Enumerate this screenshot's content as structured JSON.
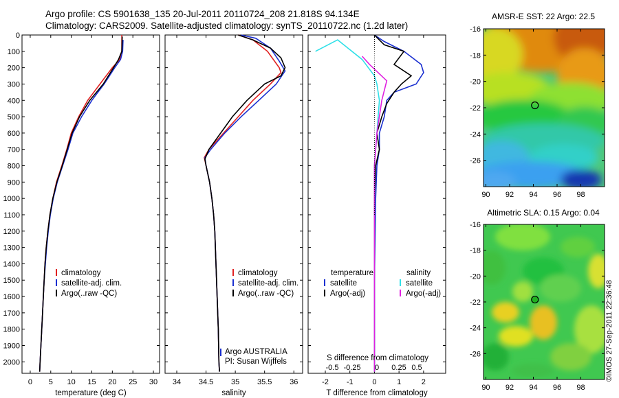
{
  "header": {
    "line1": "Argo profile: CS 5901638_135 20-Jul-2011 20110724_208 21.818S 94.134E",
    "line2": "Climatology: CARS2009. Satellite-adjusted climatology: synTS_20110722.nc (1.2d later)"
  },
  "credit": "©IMOS 27-Sep-2011 22:36:48",
  "colors": {
    "climatology": "#e02020",
    "satellite": "#1a2fd0",
    "argo": "#000000",
    "sal_satellite": "#30e0e8",
    "sal_argo": "#e020e0"
  },
  "depth_ticks": [
    0,
    100,
    200,
    300,
    400,
    500,
    600,
    700,
    800,
    900,
    1000,
    1100,
    1200,
    1300,
    1400,
    1500,
    1600,
    1700,
    1800,
    1900,
    2000
  ],
  "chart_data": [
    {
      "type": "line",
      "xlabel": "temperature (deg C)",
      "xticks": [
        0,
        5,
        10,
        15,
        20,
        25,
        30
      ],
      "xlim": [
        -2,
        31.5
      ],
      "ylim": [
        0,
        2070
      ],
      "legend": [
        "climatology",
        "satellite-adj. clim.",
        "Argo(..raw -QC)"
      ],
      "series": [
        {
          "name": "climatology",
          "points": [
            [
              22.3,
              0
            ],
            [
              22.3,
              100
            ],
            [
              21.8,
              150
            ],
            [
              20,
              200
            ],
            [
              17,
              300
            ],
            [
              14,
              400
            ],
            [
              11.8,
              500
            ],
            [
              10,
              600
            ],
            [
              8.9,
              700
            ],
            [
              7.7,
              800
            ],
            [
              6.4,
              900
            ],
            [
              5.5,
              1000
            ],
            [
              4.8,
              1100
            ],
            [
              4.3,
              1200
            ],
            [
              3.9,
              1300
            ],
            [
              3.6,
              1400
            ],
            [
              3.4,
              1500
            ],
            [
              3.2,
              1600
            ],
            [
              3,
              1700
            ],
            [
              2.8,
              1800
            ],
            [
              2.6,
              1900
            ],
            [
              2.4,
              2000
            ],
            [
              2.3,
              2060
            ]
          ]
        },
        {
          "name": "satellite-adj. clim.",
          "points": [
            [
              22.6,
              30
            ],
            [
              22.5,
              100
            ],
            [
              22,
              150
            ],
            [
              20.6,
              200
            ],
            [
              18,
              300
            ],
            [
              15,
              400
            ],
            [
              12.5,
              500
            ],
            [
              10.4,
              600
            ],
            [
              9.2,
              700
            ],
            [
              7.9,
              800
            ],
            [
              6.6,
              900
            ],
            [
              5.6,
              1000
            ],
            [
              4.9,
              1100
            ],
            [
              4.4,
              1200
            ],
            [
              4,
              1300
            ],
            [
              3.7,
              1400
            ],
            [
              3.4,
              1500
            ],
            [
              3.2,
              1600
            ],
            [
              3,
              1700
            ],
            [
              2.8,
              1800
            ],
            [
              2.6,
              1900
            ],
            [
              2.4,
              2000
            ],
            [
              2.3,
              2060
            ]
          ]
        },
        {
          "name": "Argo(..raw -QC)",
          "points": [
            [
              22.4,
              10
            ],
            [
              22.3,
              100
            ],
            [
              21.5,
              150
            ],
            [
              20.3,
              200
            ],
            [
              17.8,
              300
            ],
            [
              14.5,
              400
            ],
            [
              12,
              500
            ],
            [
              10.2,
              600
            ],
            [
              9,
              700
            ],
            [
              7.8,
              800
            ],
            [
              6.5,
              900
            ],
            [
              5.5,
              1000
            ],
            [
              4.8,
              1100
            ],
            [
              4.3,
              1200
            ],
            [
              3.9,
              1300
            ],
            [
              3.6,
              1400
            ],
            [
              3.4,
              1500
            ],
            [
              3.2,
              1600
            ],
            [
              3,
              1700
            ],
            [
              2.8,
              1800
            ],
            [
              2.6,
              1900
            ],
            [
              2.4,
              2000
            ],
            [
              2.3,
              2060
            ]
          ]
        }
      ]
    },
    {
      "type": "line",
      "xlabel": "salinity",
      "xticks": [
        34,
        34.5,
        35,
        35.5,
        36
      ],
      "xlim": [
        33.8,
        36.15
      ],
      "ylim": [
        0,
        2070
      ],
      "legend": [
        "climatology",
        "satellite-adj. clim.",
        "Argo(..raw -QC)"
      ],
      "annotation": [
        "Argo AUSTRALIA",
        "PI: Susan Wijffels"
      ],
      "series": [
        {
          "name": "climatology",
          "points": [
            [
              35.05,
              0
            ],
            [
              35.3,
              30
            ],
            [
              35.55,
              100
            ],
            [
              35.75,
              200
            ],
            [
              35.78,
              230
            ],
            [
              35.6,
              300
            ],
            [
              35.3,
              400
            ],
            [
              35.05,
              500
            ],
            [
              34.8,
              600
            ],
            [
              34.55,
              700
            ],
            [
              34.47,
              750
            ],
            [
              34.5,
              800
            ],
            [
              34.56,
              900
            ],
            [
              34.6,
              1000
            ],
            [
              34.63,
              1100
            ],
            [
              34.65,
              1200
            ],
            [
              34.67,
              1400
            ],
            [
              34.69,
              1600
            ],
            [
              34.71,
              1800
            ],
            [
              34.72,
              2000
            ],
            [
              34.73,
              2060
            ]
          ]
        },
        {
          "name": "satellite-adj. clim.",
          "points": [
            [
              35.1,
              0
            ],
            [
              35.35,
              20
            ],
            [
              35.6,
              80
            ],
            [
              35.75,
              160
            ],
            [
              35.85,
              220
            ],
            [
              35.7,
              300
            ],
            [
              35.4,
              400
            ],
            [
              35.1,
              500
            ],
            [
              34.82,
              600
            ],
            [
              34.58,
              700
            ],
            [
              34.48,
              750
            ],
            [
              34.5,
              800
            ],
            [
              34.56,
              900
            ],
            [
              34.6,
              1000
            ],
            [
              34.63,
              1100
            ],
            [
              34.65,
              1200
            ],
            [
              34.67,
              1400
            ],
            [
              34.69,
              1600
            ],
            [
              34.71,
              1800
            ],
            [
              34.72,
              2000
            ],
            [
              34.73,
              2060
            ]
          ]
        },
        {
          "name": "Argo(..raw -QC)",
          "points": [
            [
              35.05,
              0
            ],
            [
              35.3,
              30
            ],
            [
              35.6,
              80
            ],
            [
              35.78,
              140
            ],
            [
              35.85,
              200
            ],
            [
              35.78,
              250
            ],
            [
              35.5,
              300
            ],
            [
              35.2,
              400
            ],
            [
              34.95,
              500
            ],
            [
              34.75,
              600
            ],
            [
              34.55,
              700
            ],
            [
              34.48,
              760
            ],
            [
              34.5,
              800
            ],
            [
              34.56,
              900
            ],
            [
              34.6,
              1000
            ],
            [
              34.63,
              1100
            ],
            [
              34.65,
              1200
            ],
            [
              34.67,
              1400
            ],
            [
              34.69,
              1600
            ],
            [
              34.71,
              1800
            ],
            [
              34.72,
              2000
            ],
            [
              34.73,
              2060
            ]
          ]
        }
      ]
    },
    {
      "type": "line",
      "xlabel": "T difference from climatology",
      "xlabel_top": "S difference from climatology",
      "xticks": [
        -2,
        -1,
        0,
        1,
        2
      ],
      "xticks_top": [
        "-0.5",
        "-0.25",
        "0",
        "0.25",
        "0.5"
      ],
      "xlim": [
        -2.7,
        2.9
      ],
      "ylim": [
        0,
        2070
      ],
      "legend": [
        [
          "temperature",
          "satellite",
          "Argo(-adj)"
        ],
        [
          "salinity",
          "satellite",
          "Argo(-adj)"
        ]
      ],
      "series": [
        {
          "name": "satellite",
          "group": "temperature",
          "points": [
            [
              0,
              0
            ],
            [
              0.4,
              40
            ],
            [
              1.2,
              100
            ],
            [
              1.9,
              180
            ],
            [
              2,
              230
            ],
            [
              1.7,
              300
            ],
            [
              0.8,
              350
            ],
            [
              0.5,
              400
            ],
            [
              0.4,
              500
            ],
            [
              0.2,
              600
            ],
            [
              0.2,
              700
            ],
            [
              0.1,
              800
            ],
            [
              0.05,
              1000
            ],
            [
              0,
              1500
            ],
            [
              0,
              2060
            ]
          ]
        },
        {
          "name": "Argo(-adj)",
          "group": "temperature",
          "points": [
            [
              0,
              0
            ],
            [
              0.4,
              60
            ],
            [
              1.2,
              100
            ],
            [
              0.8,
              180
            ],
            [
              1.5,
              250
            ],
            [
              1.1,
              300
            ],
            [
              0.8,
              350
            ],
            [
              0.5,
              420
            ],
            [
              0.3,
              500
            ],
            [
              0.1,
              600
            ],
            [
              0.2,
              700
            ],
            [
              0.05,
              800
            ],
            [
              0,
              1000
            ],
            [
              0,
              2060
            ]
          ]
        },
        {
          "name": "satellite",
          "group": "salinity",
          "points": [
            [
              -2.4,
              100
            ],
            [
              -1.5,
              30
            ],
            [
              -0.5,
              150
            ],
            [
              0,
              250
            ],
            [
              0.1,
              300
            ],
            [
              0.2,
              400
            ],
            [
              0.1,
              600
            ],
            [
              0,
              800
            ],
            [
              0,
              1000
            ],
            [
              0,
              2060
            ]
          ]
        },
        {
          "name": "Argo(-adj)",
          "group": "salinity",
          "points": [
            [
              -0.5,
              130
            ],
            [
              -0.2,
              180
            ],
            [
              0.5,
              280
            ],
            [
              0.3,
              400
            ],
            [
              0.1,
              600
            ],
            [
              0,
              800
            ],
            [
              0,
              1000
            ],
            [
              0,
              2060
            ]
          ]
        }
      ]
    },
    {
      "type": "heatmap",
      "title": "AMSR-E SST: 22 Argo: 22.5",
      "xticks": [
        90,
        92,
        94,
        96,
        98
      ],
      "yticks": [
        -16,
        -18,
        -20,
        -22,
        -24,
        -26
      ],
      "xlim": [
        89.8,
        100
      ],
      "ylim": [
        -28,
        -16
      ],
      "marker": [
        94.134,
        -21.818
      ]
    },
    {
      "type": "heatmap",
      "title": "Altimetric SLA: 0.15 Argo: 0.04",
      "xticks": [
        90,
        92,
        94,
        96,
        98
      ],
      "yticks": [
        -16,
        -18,
        -20,
        -22,
        -24,
        -26
      ],
      "xlim": [
        89.8,
        100
      ],
      "ylim": [
        -28,
        -16
      ],
      "marker": [
        94.134,
        -21.818
      ]
    }
  ]
}
